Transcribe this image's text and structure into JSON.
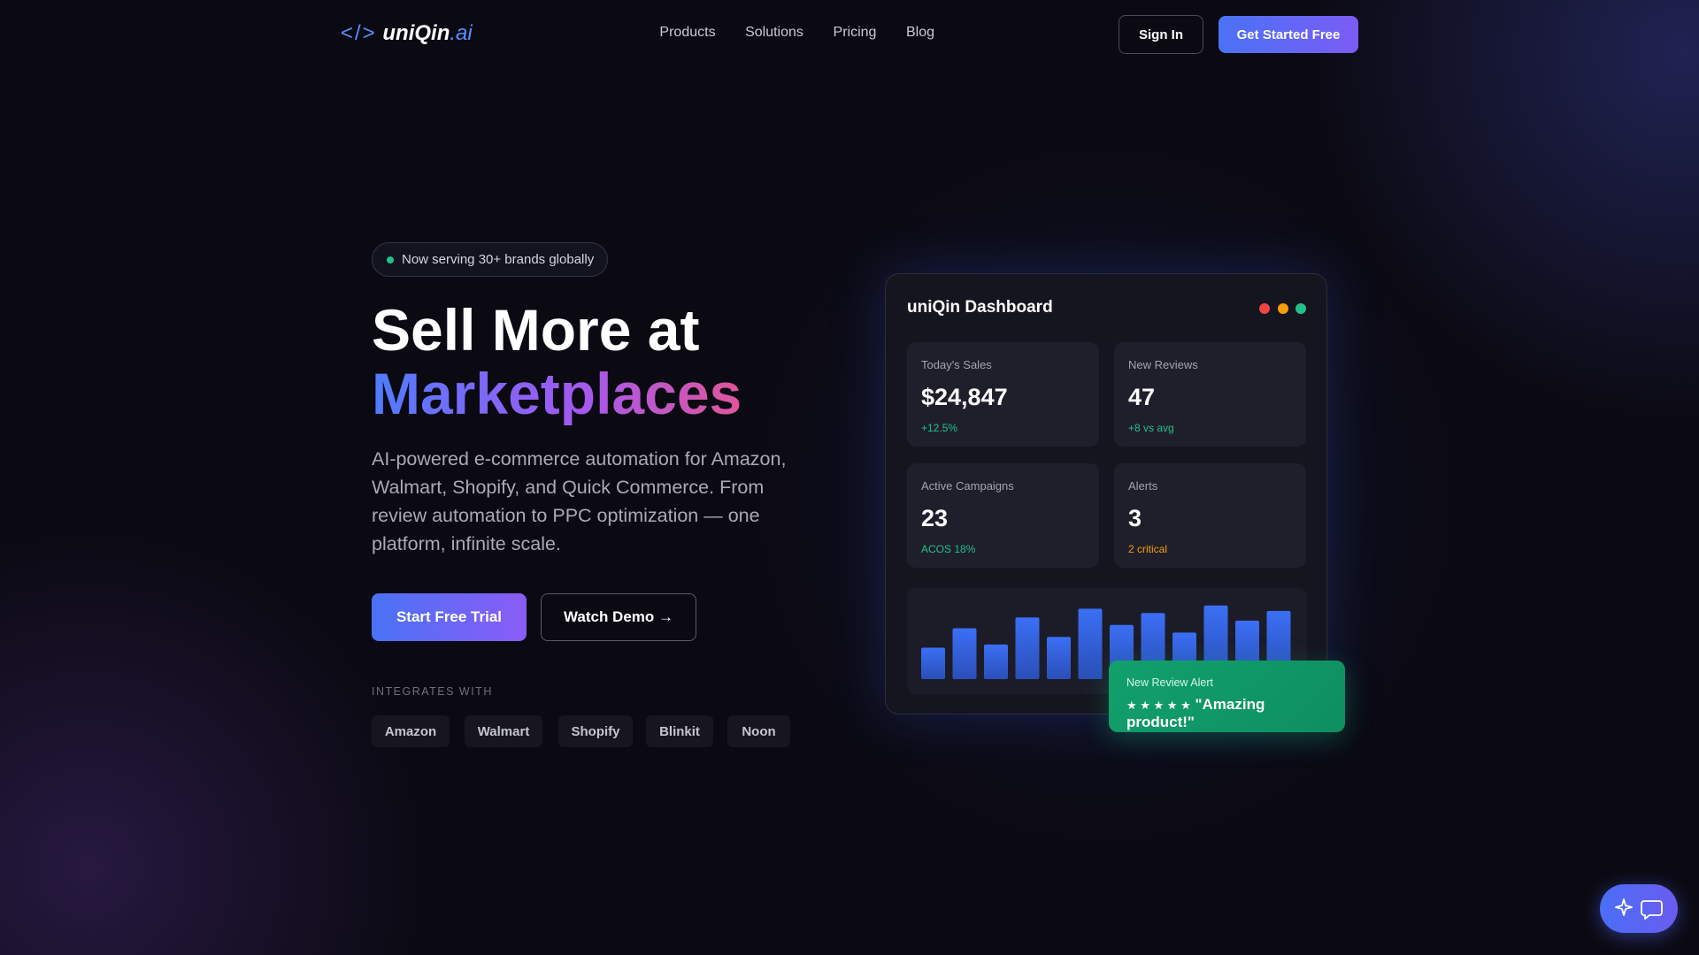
{
  "nav": {
    "logo_icon": "</>",
    "logo_name": "uniQin",
    "logo_suffix": ".ai",
    "links": [
      "Products",
      "Solutions",
      "Pricing",
      "Blog"
    ],
    "sign_in": "Sign In",
    "get_started": "Get Started Free"
  },
  "hero": {
    "badge": "Now serving 30+ brands globally",
    "title_line1": "Sell More at",
    "title_line2": "Marketplaces",
    "description": "AI-powered e-commerce automation for Amazon, Walmart, Shopify, and Quick Commerce. From review automation to PPC optimization — one platform, infinite scale.",
    "primary_button": "Start Free Trial",
    "secondary_button": "Watch Demo →",
    "integrates_label": "INTEGRATES WITH",
    "integrations": [
      "Amazon",
      "Walmart",
      "Shopify",
      "Blinkit",
      "Noon"
    ]
  },
  "dashboard": {
    "title": "uniQin Dashboard",
    "stats": [
      {
        "label": "Today's Sales",
        "value": "$24,847",
        "note": "+12.5%"
      },
      {
        "label": "New Reviews",
        "value": "47",
        "note": "+8 vs avg"
      },
      {
        "label": "Active Campaigns",
        "value": "23",
        "note": "ACOS 18%"
      },
      {
        "label": "Alerts",
        "value": "3",
        "note": "2 critical"
      }
    ],
    "chart": {
      "type": "bar",
      "values": [
        29,
        47,
        32,
        57,
        39,
        65,
        50,
        61,
        43,
        68,
        54,
        63
      ]
    }
  },
  "alert": {
    "title": "New Review Alert",
    "stars": "★ ★ ★ ★ ★",
    "quote": "\"Amazing product!\""
  }
}
